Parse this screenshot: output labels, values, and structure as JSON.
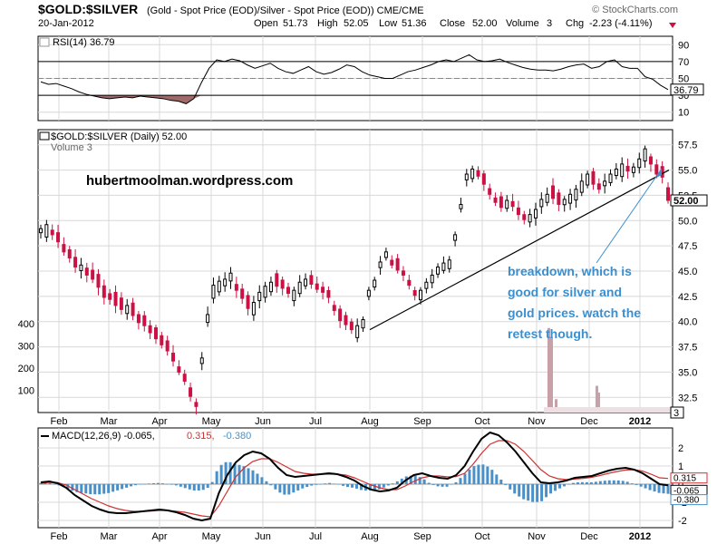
{
  "header": {
    "symbol": "$GOLD:$SILVER",
    "description": "(Gold - Spot Price (EOD)/Silver - Spot Price (EOD)) CME/CME",
    "brand": "© StockCharts.com",
    "date": "20-Jan-2012",
    "open_label": "Open",
    "open": "51.73",
    "high_label": "High",
    "high": "52.05",
    "low_label": "Low",
    "low": "51.36",
    "close_label": "Close",
    "close": "52.00",
    "volume_label": "Volume",
    "volume": "3",
    "chg_label": "Chg",
    "chg": "-2.23 (-4.11%)"
  },
  "colors": {
    "up_candle": "#000000",
    "down_candle": "#cc1144",
    "rsi_fill": "#a06a6a",
    "histogram": "#4a90c8",
    "signal_line": "#d03030",
    "annotation": "#3a8fd0",
    "grid": "#d8d8d8"
  },
  "chart_data": [
    {
      "panel": "rsi",
      "type": "line",
      "title": "RSI(14) 36.79",
      "last_value_label": "36.79",
      "ylim": [
        0,
        100
      ],
      "y_ticks": [
        10,
        30,
        50,
        70,
        90
      ],
      "reference_lines": [
        30,
        50,
        70
      ],
      "values": [
        46,
        43,
        44,
        41,
        38,
        34,
        31,
        29,
        27,
        26,
        27,
        28,
        27,
        29,
        28,
        27,
        26,
        24,
        23,
        20,
        26,
        45,
        62,
        72,
        70,
        73,
        71,
        66,
        62,
        65,
        68,
        62,
        58,
        56,
        60,
        64,
        58,
        55,
        57,
        61,
        66,
        64,
        58,
        54,
        52,
        50,
        50,
        54,
        58,
        60,
        63,
        66,
        70,
        72,
        70,
        74,
        78,
        72,
        70,
        71,
        73,
        69,
        66,
        63,
        61,
        60,
        60,
        59,
        61,
        64,
        66,
        67,
        62,
        64,
        70,
        72,
        64,
        62,
        62,
        52,
        49,
        42,
        36.79
      ]
    },
    {
      "panel": "price",
      "type": "candlestick",
      "title": "$GOLD:$SILVER (Daily) 52.00",
      "subtitle": "Volume 3",
      "last_value_label": "52.00",
      "ylim": [
        31,
        59
      ],
      "y_ticks": [
        32.5,
        35.0,
        37.5,
        40.0,
        42.5,
        45.0,
        47.5,
        50.0,
        52.5,
        55.0,
        57.5
      ],
      "x_tick_labels": [
        "Feb",
        "Mar",
        "Apr",
        "May",
        "Jun",
        "Jul",
        "Aug",
        "Sep",
        "Oct",
        "Nov",
        "Dec",
        "2012"
      ],
      "close": [
        49.2,
        49.6,
        48.6,
        47.9,
        46.9,
        46.3,
        45.4,
        45.6,
        44.6,
        44.2,
        43.4,
        42.4,
        42.2,
        41.6,
        41.2,
        41.6,
        40.6,
        39.9,
        39.6,
        38.9,
        38.3,
        37.7,
        37.1,
        36.1,
        35.0,
        34.1,
        32.6,
        31.6,
        36.4,
        40.7,
        43.6,
        44.0,
        44.2,
        44.8,
        43.1,
        42.3,
        41.3,
        41.9,
        42.9,
        43.5,
        43.9,
        43.5,
        43.3,
        42.8,
        43.1,
        43.9,
        44.2,
        43.7,
        43.2,
        42.9,
        42.4,
        41.1,
        40.1,
        39.7,
        39.2,
        39.6,
        40.2,
        43.1,
        44.1,
        45.9,
        46.9,
        45.6,
        45.1,
        44.6,
        43.6,
        42.6,
        43.1,
        43.9,
        44.6,
        45.4,
        45.8,
        46.1,
        48.6,
        51.6,
        54.6,
        55.1,
        54.4,
        53.6,
        52.6,
        51.8,
        51.3,
        52.0,
        51.4,
        50.6,
        50.1,
        50.6,
        51.1,
        52.1,
        52.6,
        52.2,
        51.6,
        52.1,
        52.6,
        53.1,
        53.9,
        54.6,
        53.6,
        53.1,
        53.9,
        54.6,
        55.1,
        55.6,
        54.9,
        55.3,
        56.1,
        57.1,
        55.6,
        54.6,
        54.3,
        52.0
      ],
      "trendline": [
        {
          "from": "Aug",
          "price": 39.2
        },
        {
          "to": "late Jan 2012",
          "price": 55.0
        }
      ],
      "volume": {
        "y_ticks": [
          100,
          200,
          300,
          400
        ],
        "spikes": [
          {
            "month": "Nov",
            "value": 380
          },
          {
            "month": "Dec",
            "value": 120
          }
        ],
        "last_value_label": "3"
      }
    },
    {
      "panel": "macd",
      "type": "line+histogram",
      "title_parts": [
        "MACD(12,26,9)",
        "-0.065",
        "0.315",
        "-0.380"
      ],
      "ylim": [
        -2.4,
        3.1
      ],
      "y_ticks": [
        -2,
        -1,
        0,
        1,
        2
      ],
      "value_labels": [
        "0.315",
        "-0.065",
        "-0.380"
      ],
      "macd": [
        0.1,
        0.15,
        0.05,
        -0.2,
        -0.6,
        -0.9,
        -1.2,
        -1.4,
        -1.55,
        -1.6,
        -1.6,
        -1.55,
        -1.5,
        -1.45,
        -1.4,
        -1.45,
        -1.55,
        -1.7,
        -1.9,
        -2.0,
        -1.9,
        -0.5,
        0.5,
        1.2,
        1.6,
        1.8,
        1.7,
        1.4,
        0.9,
        0.5,
        0.4,
        0.45,
        0.5,
        0.55,
        0.6,
        0.55,
        0.4,
        0.2,
        -0.1,
        -0.3,
        -0.4,
        -0.35,
        -0.2,
        0.2,
        0.5,
        0.6,
        0.45,
        0.35,
        0.3,
        0.5,
        1.0,
        1.8,
        2.5,
        2.85,
        2.7,
        2.3,
        1.8,
        1.2,
        0.6,
        0.1,
        0.05,
        0.1,
        0.2,
        0.35,
        0.4,
        0.45,
        0.6,
        0.75,
        0.85,
        0.9,
        0.8,
        0.6,
        0.3,
        0.0,
        -0.065
      ],
      "signal": [
        0.05,
        0.1,
        0.08,
        -0.05,
        -0.3,
        -0.55,
        -0.8,
        -1.0,
        -1.2,
        -1.35,
        -1.45,
        -1.5,
        -1.5,
        -1.48,
        -1.45,
        -1.45,
        -1.5,
        -1.55,
        -1.65,
        -1.75,
        -1.8,
        -1.2,
        -0.4,
        0.4,
        0.9,
        1.25,
        1.4,
        1.4,
        1.2,
        0.95,
        0.7,
        0.6,
        0.55,
        0.55,
        0.55,
        0.55,
        0.5,
        0.35,
        0.15,
        -0.05,
        -0.2,
        -0.3,
        -0.3,
        -0.1,
        0.15,
        0.35,
        0.45,
        0.45,
        0.4,
        0.42,
        0.6,
        1.1,
        1.7,
        2.2,
        2.4,
        2.4,
        2.2,
        1.8,
        1.3,
        0.8,
        0.45,
        0.3,
        0.25,
        0.28,
        0.32,
        0.38,
        0.48,
        0.6,
        0.7,
        0.78,
        0.8,
        0.72,
        0.55,
        0.35,
        0.315
      ]
    }
  ],
  "annotations": {
    "watermark": "hubertmoolman.wordpress.com",
    "note_lines": [
      "breakdown, which is",
      "good for silver and",
      "gold prices. watch the",
      "retest though."
    ]
  }
}
